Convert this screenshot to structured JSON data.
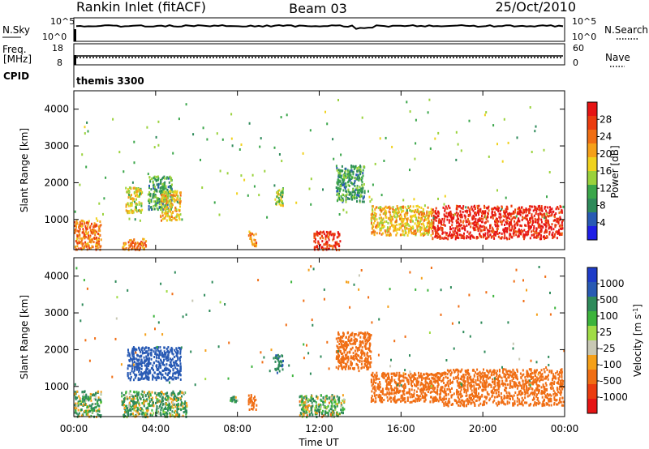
{
  "header": {
    "station": "Rankin Inlet (fitACF)",
    "beam": "Beam 03",
    "date": "25/Oct/2010"
  },
  "panels": {
    "nsky": {
      "left_label": "N.Sky",
      "right_label": "N.Search",
      "right_legend_line": "dotted",
      "left_ticks": [
        "10^5",
        "10^0"
      ],
      "right_ticks": [
        "10^5",
        "10^0"
      ]
    },
    "freq": {
      "left_label_1": "Freq.",
      "left_label_2": "[MHz]",
      "right_label": "Nave",
      "right_legend_line": "dotted",
      "left_ticks": [
        "18",
        "8"
      ],
      "right_ticks": [
        "60",
        "0"
      ]
    },
    "cpid": {
      "label": "CPID",
      "value": "themis 3300"
    }
  },
  "colorbars": {
    "power": {
      "label": "Power [dB]",
      "colors": [
        "#1e1ee6",
        "#285ab4",
        "#2e8a5a",
        "#3aa64a",
        "#9ad23c",
        "#f0d21e",
        "#f5a019",
        "#f06e14",
        "#eb3c0f",
        "#e61414"
      ],
      "ticks": [
        "4",
        "8",
        "12",
        "16",
        "20",
        "24",
        "28"
      ]
    },
    "velocity": {
      "label_main": "Velocity [m s",
      "label_exp": "-1",
      "label_end": "]",
      "colors": [
        "#e61414",
        "#eb3c0f",
        "#f06e14",
        "#f5a019",
        "#c8c8b4",
        "#a0dc46",
        "#3cb43c",
        "#2e8a5a",
        "#285ab4",
        "#1e3cc8"
      ],
      "ticks": [
        "-1000",
        "-500",
        "-100",
        "-25",
        "25",
        "100",
        "500",
        "1000"
      ]
    }
  },
  "chart_data": [
    {
      "type": "heatmap",
      "title": "",
      "xlabel": "Time UT",
      "ylabel": "Slant Range [km]",
      "xticks": [
        "00:00",
        "04:00",
        "08:00",
        "12:00",
        "16:00",
        "20:00",
        "00:00"
      ],
      "yticks": [
        1000,
        2000,
        3000,
        4000
      ],
      "xlim_hours": [
        0,
        24
      ],
      "ylim_km": [
        180,
        4500
      ],
      "grid": false,
      "colorbar": "Power [dB]",
      "regions": [
        {
          "t0": 0.0,
          "t1": 1.3,
          "r0": 200,
          "r1": 1000,
          "value_db": 22
        },
        {
          "t0": 2.3,
          "t1": 3.5,
          "r0": 200,
          "r1": 500,
          "value_db": 22
        },
        {
          "t0": 2.5,
          "t1": 3.3,
          "r0": 1200,
          "r1": 1900,
          "value_db": 16
        },
        {
          "t0": 3.6,
          "t1": 4.8,
          "r0": 1300,
          "r1": 2200,
          "value_db": 10
        },
        {
          "t0": 4.2,
          "t1": 5.2,
          "r0": 1000,
          "r1": 1800,
          "value_db": 18
        },
        {
          "t0": 8.5,
          "t1": 8.9,
          "r0": 300,
          "r1": 700,
          "value_db": 20
        },
        {
          "t0": 9.8,
          "t1": 10.2,
          "r0": 1400,
          "r1": 1900,
          "value_db": 14
        },
        {
          "t0": 11.7,
          "t1": 13.0,
          "r0": 200,
          "r1": 700,
          "value_db": 26
        },
        {
          "t0": 12.8,
          "t1": 14.2,
          "r0": 1500,
          "r1": 2500,
          "value_db": 10
        },
        {
          "t0": 14.5,
          "t1": 17.5,
          "r0": 600,
          "r1": 1400,
          "value_db": 18
        },
        {
          "t0": 17.5,
          "t1": 23.9,
          "r0": 500,
          "r1": 1400,
          "value_db": 28
        }
      ]
    },
    {
      "type": "heatmap",
      "title": "",
      "xlabel": "Time UT",
      "ylabel": "Slant Range [km]",
      "xticks": [
        "00:00",
        "04:00",
        "08:00",
        "12:00",
        "16:00",
        "20:00",
        "00:00"
      ],
      "yticks": [
        1000,
        2000,
        3000,
        4000
      ],
      "xlim_hours": [
        0,
        24
      ],
      "ylim_km": [
        180,
        4500
      ],
      "grid": false,
      "colorbar": "Velocity [m s-1]",
      "regions": [
        {
          "t0": 0.0,
          "t1": 1.3,
          "r0": 200,
          "r1": 900,
          "value_ms": 100
        },
        {
          "t0": 2.6,
          "t1": 5.2,
          "r0": 1200,
          "r1": 2100,
          "value_ms": 800
        },
        {
          "t0": 2.3,
          "t1": 5.5,
          "r0": 200,
          "r1": 900,
          "value_ms": 100
        },
        {
          "t0": 7.6,
          "t1": 8.0,
          "r0": 600,
          "r1": 800,
          "value_ms": 100
        },
        {
          "t0": 8.5,
          "t1": 8.9,
          "r0": 400,
          "r1": 800,
          "value_ms": -300
        },
        {
          "t0": 9.8,
          "t1": 10.2,
          "r0": 1400,
          "r1": 1900,
          "value_ms": 400
        },
        {
          "t0": 11.0,
          "t1": 13.2,
          "r0": 200,
          "r1": 800,
          "value_ms": 60
        },
        {
          "t0": 12.8,
          "t1": 14.5,
          "r0": 1500,
          "r1": 2500,
          "value_ms": -300
        },
        {
          "t0": 14.5,
          "t1": 18.0,
          "r0": 600,
          "r1": 1400,
          "value_ms": -300
        },
        {
          "t0": 18.0,
          "t1": 23.9,
          "r0": 500,
          "r1": 1500,
          "value_ms": -300
        }
      ]
    }
  ]
}
